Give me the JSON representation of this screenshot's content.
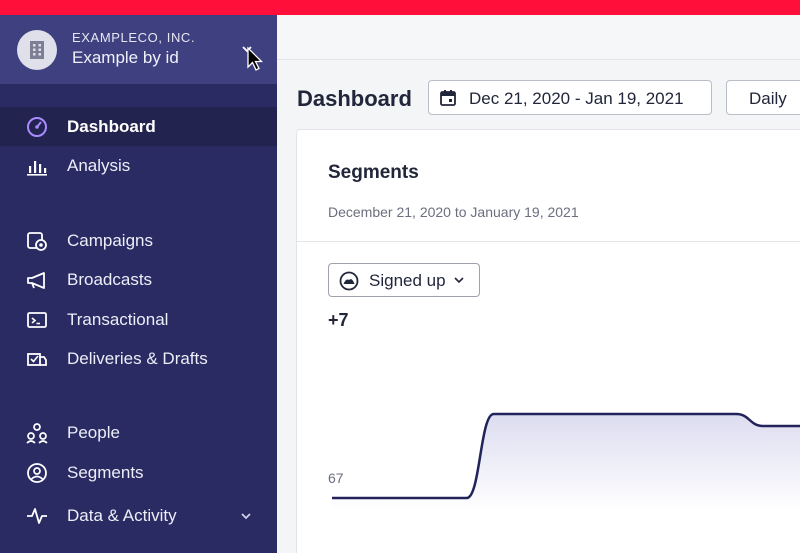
{
  "workspace": {
    "company": "EXAMPLECO, INC.",
    "name": "Example by id"
  },
  "sidebar": {
    "items": [
      {
        "label": "Dashboard",
        "icon": "gauge-icon",
        "active": true
      },
      {
        "label": "Analysis",
        "icon": "bar-chart-icon"
      },
      {
        "label": "Campaigns",
        "icon": "campaign-icon"
      },
      {
        "label": "Broadcasts",
        "icon": "megaphone-icon"
      },
      {
        "label": "Transactional",
        "icon": "terminal-icon"
      },
      {
        "label": "Deliveries & Drafts",
        "icon": "deliveries-icon"
      },
      {
        "label": "People",
        "icon": "people-icon"
      },
      {
        "label": "Segments",
        "icon": "segments-icon"
      },
      {
        "label": "Data & Activity",
        "icon": "activity-icon"
      }
    ]
  },
  "header": {
    "title": "Dashboard",
    "date_range": "Dec 21, 2020 - Jan 19, 2021",
    "interval": "Daily"
  },
  "card": {
    "title": "Segments",
    "subtitle": "December 21, 2020 to January 19, 2021",
    "segment_select": "Signed up",
    "delta": "+7",
    "y_label": "67"
  },
  "colors": {
    "brand_red": "#ff0f3a",
    "sidebar_bg": "#2a2b63",
    "workspace_bg": "#3f4080",
    "line": "#22235a",
    "active_icon": "#a98bff"
  },
  "chart_data": {
    "type": "area",
    "x": [
      0,
      1,
      2,
      3,
      4,
      5,
      6,
      7,
      8,
      9,
      10,
      11,
      12,
      13,
      14,
      15,
      16,
      17,
      18
    ],
    "series": [
      {
        "values": [
          67,
          67,
          67,
          67,
          67,
          67,
          74,
          74,
          74,
          74,
          74,
          74,
          74,
          74,
          74,
          74,
          73,
          73,
          73
        ]
      }
    ],
    "ylim": [
      66,
      76
    ],
    "grid": false
  }
}
